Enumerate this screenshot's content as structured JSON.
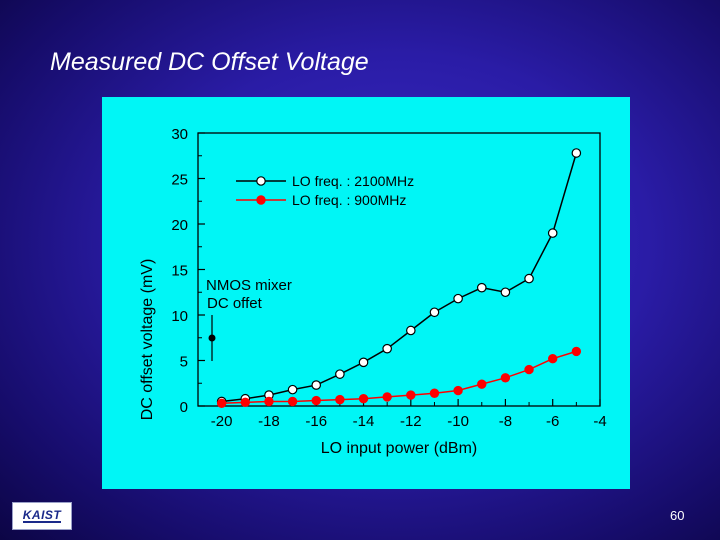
{
  "slide": {
    "title": "Measured DC Offset Voltage",
    "page_number": "60",
    "logo_text": "KAIST"
  },
  "colors": {
    "panel_bg": "#00f6f6",
    "series_2100": "#000000",
    "series_900": "#ff0000"
  },
  "chart_data": {
    "type": "line",
    "xlabel": "LO input power (dBm)",
    "ylabel": "DC offset voltage (mV)",
    "ylabel_display": "DC  offset  voltage  (mV)",
    "xlim": [
      -21,
      -4
    ],
    "ylim": [
      0,
      30
    ],
    "xticks": [
      -20,
      -18,
      -16,
      -14,
      -12,
      -10,
      -8,
      -6,
      -4
    ],
    "yticks": [
      0,
      5,
      10,
      15,
      20,
      25,
      30
    ],
    "annotation": [
      "NMOS mixer",
      "DC offet"
    ],
    "legend_position": "top-left",
    "series": [
      {
        "name": "LO freq. : 2100MHz",
        "marker": "open-circle",
        "color": "#000000",
        "x": [
          -20,
          -19,
          -18,
          -17,
          -16,
          -15,
          -14,
          -13,
          -12,
          -11,
          -10,
          -9,
          -8,
          -7,
          -6,
          -5
        ],
        "y": [
          0.5,
          0.8,
          1.2,
          1.8,
          2.3,
          3.5,
          4.8,
          6.3,
          8.3,
          10.3,
          11.8,
          13.0,
          12.5,
          14.0,
          19.0,
          27.8
        ]
      },
      {
        "name": "LO freq. : 900MHz",
        "marker": "filled-circle",
        "color": "#ff0000",
        "x": [
          -20,
          -19,
          -18,
          -17,
          -16,
          -15,
          -14,
          -13,
          -12,
          -11,
          -10,
          -9,
          -8,
          -7,
          -6,
          -5
        ],
        "y": [
          0.3,
          0.4,
          0.5,
          0.5,
          0.6,
          0.7,
          0.8,
          1.0,
          1.2,
          1.4,
          1.7,
          2.4,
          3.1,
          4.0,
          5.2,
          6.0
        ]
      }
    ]
  }
}
